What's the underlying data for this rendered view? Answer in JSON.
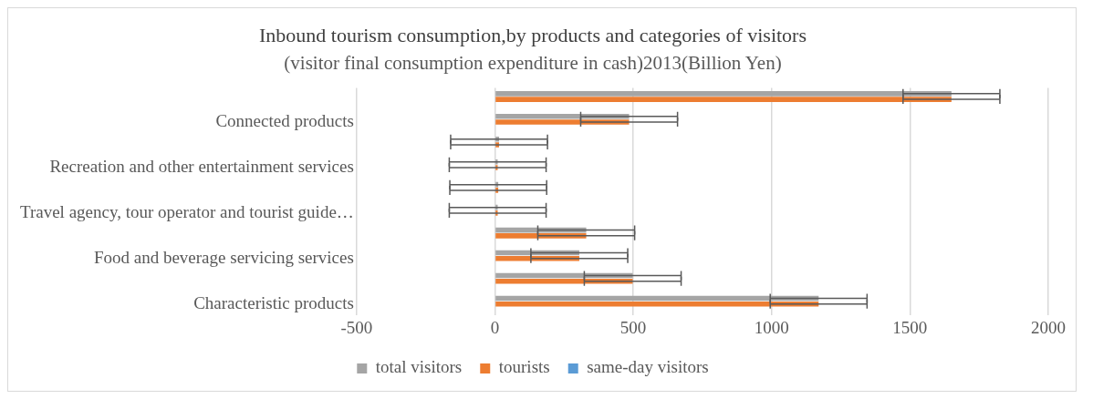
{
  "chart_data": {
    "type": "bar",
    "orientation": "horizontal",
    "title": "Inbound tourism consumption,by products and categories of visitors",
    "subtitle": "(visitor final consumption expenditure in cash)2013(Billion Yen)",
    "categories": [
      null,
      "Connected products",
      null,
      "Recreation and other entertainment services",
      null,
      "Travel agency, tour operator and tourist guide…",
      null,
      "Food and beverage servicing services",
      null,
      "Characteristic products"
    ],
    "series": [
      {
        "name": "total visitors",
        "color": "#a5a5a5",
        "values": [
          1650,
          485,
          15,
          10,
          12,
          10,
          330,
          305,
          498,
          1170
        ],
        "errors": [
          175,
          175,
          175,
          175,
          175,
          175,
          175,
          175,
          175,
          175
        ]
      },
      {
        "name": "tourists",
        "color": "#ed7d31",
        "values": [
          1650,
          485,
          15,
          10,
          12,
          10,
          330,
          305,
          498,
          1170
        ],
        "errors": [
          175,
          175,
          175,
          175,
          175,
          175,
          175,
          175,
          175,
          175
        ]
      },
      {
        "name": "same-day visitors",
        "color": "#5b9bd5",
        "values": [
          0,
          0,
          0,
          0,
          0,
          0,
          0,
          0,
          0,
          0
        ]
      }
    ],
    "xlim": [
      -500,
      2000
    ],
    "xticks": [
      -500,
      0,
      500,
      1000,
      1500,
      2000
    ],
    "grid": "x",
    "legend": "bottom"
  }
}
